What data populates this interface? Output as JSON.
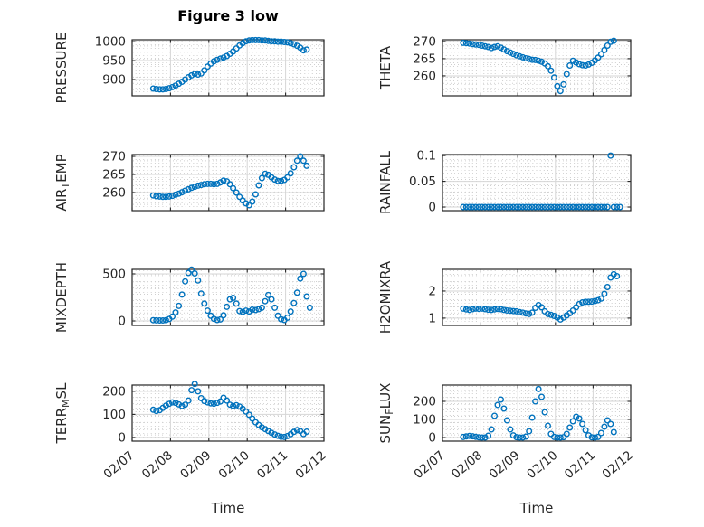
{
  "title": "Figure 3 low",
  "xlabel": "Time",
  "x_tick_labels": [
    "02/07",
    "02/08",
    "02/09",
    "02/10",
    "02/11",
    "02/12"
  ],
  "colors": {
    "marker": "#0072BD",
    "axis": "#262626",
    "text": "#262626",
    "title": "#000000",
    "grid": "#d6d6d6",
    "minor_grid": "#cfcfcf",
    "background": "#ffffff"
  },
  "chart_data": {
    "type": "scatter",
    "marker": "open-circle",
    "x_unit": "days after 02/07",
    "x_range": [
      0,
      5
    ],
    "grid": "major+minor",
    "t_days": [
      0.55,
      0.633,
      0.717,
      0.8,
      0.883,
      0.967,
      1.05,
      1.133,
      1.217,
      1.3,
      1.383,
      1.467,
      1.55,
      1.633,
      1.717,
      1.8,
      1.883,
      1.967,
      2.05,
      2.133,
      2.217,
      2.3,
      2.383,
      2.467,
      2.55,
      2.633,
      2.717,
      2.8,
      2.883,
      2.967,
      3.05,
      3.133,
      3.217,
      3.3,
      3.383,
      3.467,
      3.55,
      3.633,
      3.717,
      3.8,
      3.883,
      3.967,
      4.05,
      4.133,
      4.217,
      4.3,
      4.383,
      4.467,
      4.55
    ],
    "subplots": [
      {
        "id": "pressure",
        "column": 0,
        "row": 0,
        "label_parts": [
          {
            "t": "PRESSURE"
          }
        ],
        "ylim": [
          857,
          1005
        ],
        "yticks": [
          900,
          950,
          1000
        ],
        "ytick_labels": [
          "900",
          "950",
          "1000"
        ],
        "values": [
          876,
          875,
          874,
          874,
          875,
          877,
          880,
          884,
          889,
          894,
          900,
          906,
          911,
          915,
          913,
          916,
          924,
          934,
          942,
          948,
          952,
          955,
          958,
          962,
          968,
          974,
          982,
          990,
          996,
          1001,
          1003,
          1004,
          1004,
          1004,
          1003,
          1003,
          1002,
          1001,
          1001,
          1000,
          1000,
          999,
          998,
          996,
          993,
          989,
          984,
          977,
          979
        ]
      },
      {
        "id": "theta",
        "column": 1,
        "row": 0,
        "label_parts": [
          {
            "t": "THETA"
          }
        ],
        "ylim": [
          254.2,
          270.5
        ],
        "yticks": [
          260,
          265,
          270
        ],
        "ytick_labels": [
          "260",
          "265",
          "270"
        ],
        "values": [
          269.6,
          269.5,
          269.4,
          269.2,
          269.1,
          269.0,
          268.8,
          268.6,
          268.4,
          268.1,
          268.4,
          268.6,
          268.2,
          267.7,
          267.2,
          266.8,
          266.4,
          266.0,
          265.7,
          265.4,
          265.1,
          264.9,
          264.7,
          264.6,
          264.4,
          264.1,
          263.6,
          262.8,
          261.5,
          259.5,
          257.0,
          255.6,
          257.5,
          260.5,
          263.0,
          264.4,
          263.9,
          263.4,
          263.1,
          263.0,
          263.3,
          263.8,
          264.5,
          265.3,
          266.3,
          267.5,
          268.8,
          269.9,
          270.2
        ]
      },
      {
        "id": "air-temp",
        "column": 0,
        "row": 1,
        "label_parts": [
          {
            "t": "AIR"
          },
          {
            "t": "T",
            "sub": true
          },
          {
            "t": "EMP"
          }
        ],
        "ylim": [
          255.0,
          270.5
        ],
        "yticks": [
          260,
          265,
          270
        ],
        "ytick_labels": [
          "260",
          "265",
          "270"
        ],
        "values": [
          259.2,
          259.0,
          258.9,
          258.8,
          258.8,
          258.9,
          259.1,
          259.4,
          259.7,
          260.1,
          260.5,
          260.9,
          261.3,
          261.6,
          261.9,
          262.1,
          262.3,
          262.4,
          262.4,
          262.3,
          262.4,
          262.8,
          263.3,
          263.1,
          262.3,
          261.2,
          260.0,
          258.8,
          257.8,
          257.0,
          256.5,
          257.5,
          259.5,
          262.0,
          264.0,
          265.2,
          264.9,
          264.2,
          263.6,
          263.2,
          263.2,
          263.5,
          264.2,
          265.3,
          267.0,
          268.8,
          270.0,
          268.8,
          267.4
        ]
      },
      {
        "id": "rainfall",
        "column": 1,
        "row": 1,
        "label_parts": [
          {
            "t": "RAINFALL"
          }
        ],
        "ylim": [
          -0.007,
          0.102
        ],
        "yticks": [
          0,
          0.05,
          0.1
        ],
        "ytick_labels": [
          "0",
          "0.05",
          "0.1"
        ],
        "values": [
          0,
          0,
          0,
          0,
          0,
          0,
          0,
          0,
          0,
          0,
          0,
          0,
          0,
          0,
          0,
          0,
          0,
          0,
          0,
          0,
          0,
          0,
          0,
          0,
          0,
          0,
          0,
          0,
          0,
          0,
          0,
          0,
          0,
          0,
          0,
          0,
          0,
          0,
          0,
          0,
          0,
          0,
          0,
          0,
          0,
          0,
          0,
          0.1,
          0
        ],
        "extra_points": [
          [
            4.633,
            0
          ],
          [
            4.717,
            0
          ]
        ]
      },
      {
        "id": "mixdepth",
        "column": 0,
        "row": 2,
        "label_parts": [
          {
            "t": "MIXDEPTH"
          }
        ],
        "ylim": [
          -48,
          548
        ],
        "yticks": [
          0,
          500
        ],
        "ytick_labels": [
          "0",
          "500"
        ],
        "values": [
          8,
          6,
          5,
          5,
          8,
          20,
          45,
          90,
          160,
          280,
          420,
          510,
          545,
          505,
          430,
          290,
          185,
          110,
          55,
          22,
          10,
          15,
          60,
          150,
          230,
          245,
          185,
          105,
          95,
          110,
          100,
          120,
          115,
          125,
          140,
          210,
          275,
          230,
          140,
          55,
          18,
          10,
          35,
          100,
          190,
          300,
          450,
          500,
          260
        ],
        "extra_points": [
          [
            4.633,
            140
          ]
        ]
      },
      {
        "id": "h2omixra",
        "column": 1,
        "row": 2,
        "label_parts": [
          {
            "t": "H2OMIXRA"
          }
        ],
        "ylim": [
          0.73,
          2.8
        ],
        "yticks": [
          1,
          2
        ],
        "ytick_labels": [
          "1",
          "2"
        ],
        "values": [
          1.35,
          1.32,
          1.3,
          1.33,
          1.35,
          1.34,
          1.35,
          1.33,
          1.31,
          1.3,
          1.32,
          1.34,
          1.33,
          1.3,
          1.28,
          1.27,
          1.26,
          1.25,
          1.22,
          1.2,
          1.17,
          1.15,
          1.2,
          1.38,
          1.48,
          1.4,
          1.25,
          1.15,
          1.12,
          1.08,
          1.02,
          0.95,
          1.02,
          1.1,
          1.18,
          1.28,
          1.4,
          1.52,
          1.58,
          1.6,
          1.6,
          1.61,
          1.63,
          1.66,
          1.72,
          1.9,
          2.15,
          2.5,
          2.62
        ],
        "extra_points": [
          [
            4.633,
            2.55
          ]
        ]
      },
      {
        "id": "terr-msl",
        "column": 0,
        "row": 3,
        "label_parts": [
          {
            "t": "TERR"
          },
          {
            "t": "M",
            "sub": true
          },
          {
            "t": "SL"
          }
        ],
        "ylim": [
          -16,
          227
        ],
        "yticks": [
          0,
          100,
          200
        ],
        "ytick_labels": [
          "0",
          "100",
          "200"
        ],
        "values": [
          120,
          115,
          118,
          128,
          138,
          146,
          152,
          150,
          143,
          136,
          142,
          160,
          205,
          232,
          200,
          170,
          158,
          152,
          148,
          146,
          150,
          156,
          172,
          160,
          142,
          136,
          140,
          134,
          124,
          112,
          98,
          82,
          66,
          54,
          44,
          36,
          28,
          20,
          13,
          7,
          3,
          2,
          6,
          14,
          24,
          32,
          28,
          15,
          25
        ]
      },
      {
        "id": "sun-flux",
        "column": 1,
        "row": 3,
        "label_parts": [
          {
            "t": "SUN"
          },
          {
            "t": "F",
            "sub": true
          },
          {
            "t": "LUX"
          }
        ],
        "ylim": [
          -20,
          290
        ],
        "yticks": [
          0,
          100,
          200
        ],
        "ytick_labels": [
          "0",
          "100",
          "200"
        ],
        "values": [
          3,
          6,
          9,
          7,
          4,
          1,
          0,
          0,
          10,
          45,
          120,
          180,
          210,
          160,
          95,
          45,
          12,
          2,
          0,
          0,
          5,
          35,
          110,
          200,
          268,
          225,
          140,
          65,
          20,
          3,
          0,
          0,
          2,
          20,
          55,
          90,
          115,
          105,
          75,
          40,
          12,
          1,
          0,
          3,
          25,
          60,
          95,
          75,
          30
        ]
      }
    ]
  }
}
